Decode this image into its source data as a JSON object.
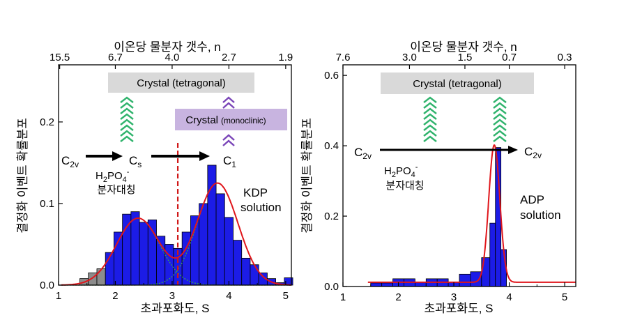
{
  "chart_data": [
    {
      "type": "bar",
      "panel": "left",
      "xlabel": "초과포화도, S",
      "ylabel": "결정화 이벤트 확률분포",
      "top_axis_label": "이온당 물분자 갯수, n",
      "xlim": [
        1,
        5.1
      ],
      "ylim": [
        0,
        0.27
      ],
      "x_ticks": [
        "1",
        "2",
        "3",
        "4",
        "5"
      ],
      "y_ticks": [
        "0.0",
        "0.1",
        "0.2"
      ],
      "top_ticks": [
        {
          "s": 1.02,
          "label": "15.5"
        },
        {
          "s": 2.0,
          "label": "6.7"
        },
        {
          "s": 3.0,
          "label": "4.0"
        },
        {
          "s": 4.0,
          "label": "2.7"
        },
        {
          "s": 5.0,
          "label": "1.9"
        }
      ],
      "bins": {
        "x_centers": [
          1.45,
          1.6,
          1.75,
          1.9,
          2.05,
          2.2,
          2.35,
          2.5,
          2.65,
          2.8,
          2.95,
          3.1,
          3.25,
          3.4,
          3.55,
          3.7,
          3.85,
          4.0,
          4.15,
          4.3,
          4.45,
          4.6,
          4.75,
          4.9,
          5.05
        ],
        "values": [
          0.008,
          0.015,
          0.02,
          0.04,
          0.065,
          0.087,
          0.09,
          0.077,
          0.08,
          0.06,
          0.05,
          0.045,
          0.065,
          0.085,
          0.1,
          0.147,
          0.112,
          0.083,
          0.055,
          0.033,
          0.025,
          0.015,
          0.008,
          0.003,
          0.009
        ],
        "colors": [
          "#8c8c8c",
          "#8c8c8c",
          "#8c8c8c",
          "#1c1ce6",
          "#1c1ce6",
          "#1c1ce6",
          "#1c1ce6",
          "#1c1ce6",
          "#1c1ce6",
          "#1c1ce6",
          "#1c1ce6",
          "#1c1ce6",
          "#1c1ce6",
          "#1c1ce6",
          "#1c1ce6",
          "#1c1ce6",
          "#1c1ce6",
          "#1c1ce6",
          "#1c1ce6",
          "#1c1ce6",
          "#1c1ce6",
          "#1c1ce6",
          "#1c1ce6",
          "#1c1ce6",
          "#1c1ce6"
        ]
      },
      "fit_components": [
        {
          "mu": 2.4,
          "sigma": 0.38,
          "amp": 0.082
        },
        {
          "mu": 3.8,
          "sigma": 0.36,
          "amp": 0.125
        }
      ],
      "fit_color": "#e0161b",
      "vline_s": 3.1,
      "vline_color": "#d01818",
      "annotations": {
        "phase_box_top": "Crystal (tetragonal)",
        "phase_box_bottom": "Crystal",
        "phase_box_bottom_small": "(monoclinic)",
        "sym_c2v_main": "C",
        "sym_c2v_sub": "2v",
        "sym_cs_main": "C",
        "sym_cs_sub": "s",
        "sym_c1_main": "C",
        "sym_c1_sub": "1",
        "ion_h": "H",
        "ion_2": "2",
        "ion_po": "PO",
        "ion_4": "4",
        "ion_minus": "-",
        "sym_caption": "분자대칭",
        "solution_line1": "KDP",
        "solution_line2": "solution"
      }
    },
    {
      "type": "bar",
      "panel": "right",
      "xlabel": "초과포화도, S",
      "ylabel": "결정화 이벤트 확률분포",
      "top_axis_label": "이온당 물분자 갯수, n",
      "xlim": [
        1,
        5.2
      ],
      "ylim": [
        0,
        0.63
      ],
      "x_ticks": [
        "1",
        "2",
        "3",
        "4",
        "5"
      ],
      "y_ticks": [
        "0.0",
        "0.2",
        "0.4",
        "0.6"
      ],
      "top_ticks": [
        {
          "s": 1.0,
          "label": "7.6"
        },
        {
          "s": 2.2,
          "label": "3.0"
        },
        {
          "s": 3.2,
          "label": "1.5"
        },
        {
          "s": 4.0,
          "label": "0.7"
        },
        {
          "s": 5.0,
          "label": "0.3"
        }
      ],
      "bins": {
        "x_centers": [
          1.6,
          1.8,
          2.0,
          2.2,
          2.4,
          2.6,
          2.8,
          3.0,
          3.2,
          3.4,
          3.6,
          3.7,
          3.8,
          3.9
        ],
        "values": [
          0.01,
          0.01,
          0.022,
          0.022,
          0.012,
          0.022,
          0.022,
          0.012,
          0.035,
          0.042,
          0.082,
          0.18,
          0.395,
          0.105
        ],
        "colors": [
          "#1c1ce6",
          "#1c1ce6",
          "#1c1ce6",
          "#1c1ce6",
          "#1c1ce6",
          "#1c1ce6",
          "#1c1ce6",
          "#1c1ce6",
          "#1c1ce6",
          "#1c1ce6",
          "#1c1ce6",
          "#1c1ce6",
          "#1c1ce6",
          "#1c1ce6"
        ]
      },
      "bin_widths": [
        0.2,
        0.2,
        0.2,
        0.2,
        0.2,
        0.2,
        0.2,
        0.2,
        0.2,
        0.2,
        0.2,
        0.1,
        0.1,
        0.1
      ],
      "fit_components": [
        {
          "mu": 3.73,
          "sigma": 0.1,
          "amp": 0.39
        }
      ],
      "fit_baseline": 0.012,
      "fit_x_start": 1.45,
      "fit_color": "#e0161b",
      "annotations": {
        "phase_box_top": "Crystal (tetragonal)",
        "sym_left_main": "C",
        "sym_left_sub": "2v",
        "sym_right_main": "C",
        "sym_right_sub": "2v",
        "ion_h": "H",
        "ion_2": "2",
        "ion_po": "PO",
        "ion_4": "4",
        "ion_minus": "-",
        "sym_caption": "분자대칭",
        "solution_line1": "ADP",
        "solution_line2": "solution"
      }
    }
  ]
}
